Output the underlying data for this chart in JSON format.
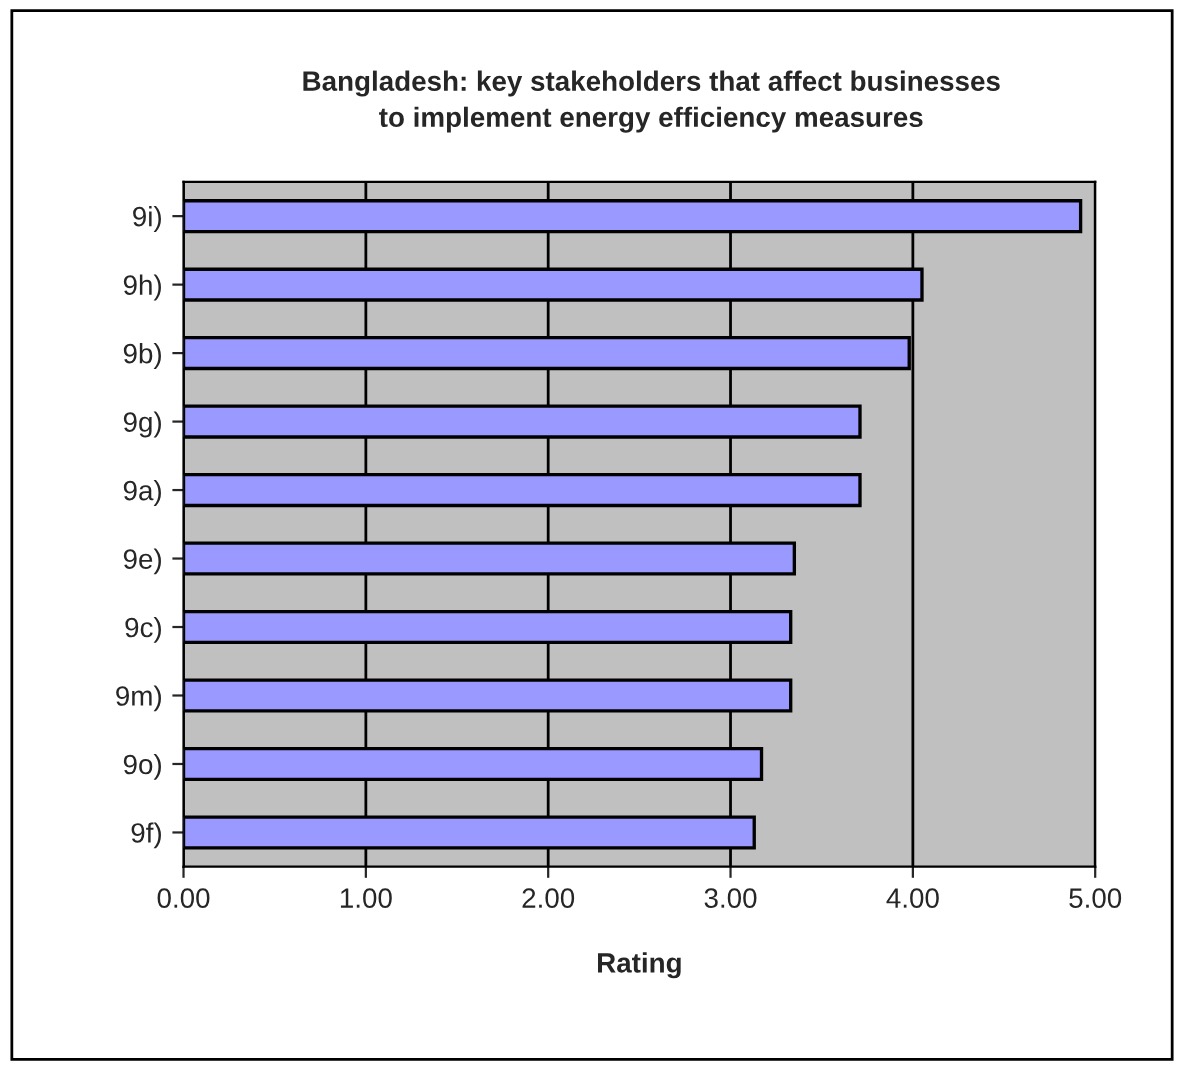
{
  "chart_data": {
    "type": "bar",
    "orientation": "horizontal",
    "title": "Bangladesh: key stakeholders that affect businesses\nto implement energy efficiency measures",
    "xlabel": "Rating",
    "categories": [
      "9i)",
      "9h)",
      "9b)",
      "9g)",
      "9a)",
      "9e)",
      "9c)",
      "9m)",
      "9o)",
      "9f)"
    ],
    "values": [
      4.92,
      4.05,
      3.98,
      3.71,
      3.71,
      3.35,
      3.33,
      3.33,
      3.17,
      3.13
    ],
    "color": "#9999ff",
    "xlim": [
      0,
      5
    ],
    "xticks": [
      {
        "value": 0,
        "label": "0.00"
      },
      {
        "value": 1,
        "label": "1.00"
      },
      {
        "value": 2,
        "label": "2.00"
      },
      {
        "value": 3,
        "label": "3.00"
      },
      {
        "value": 4,
        "label": "4.00"
      },
      {
        "value": 5,
        "label": "5.00"
      }
    ],
    "grid": "x"
  }
}
